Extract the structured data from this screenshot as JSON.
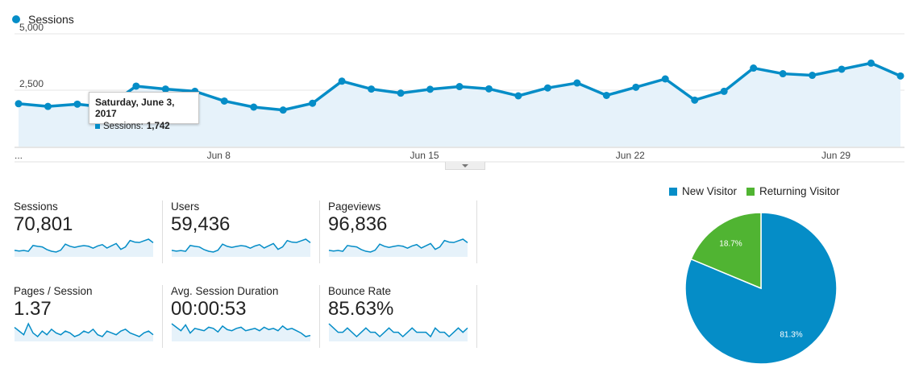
{
  "chart_data": [
    {
      "type": "line",
      "series": [
        {
          "name": "Sessions",
          "values": [
            1900,
            1780,
            1880,
            1742,
            2680,
            2550,
            2450,
            2020,
            1750,
            1620,
            1920,
            2900,
            2550,
            2370,
            2540,
            2660,
            2560,
            2250,
            2600,
            2820,
            2270,
            2630,
            3000,
            2060,
            2450,
            3480,
            3230,
            3160,
            3430,
            3700,
            3130
          ]
        }
      ],
      "x_tick_labels": [
        "...",
        "Jun 8",
        "Jun 15",
        "Jun 22",
        "Jun 29"
      ],
      "y_tick_labels": [
        "5,000",
        "2,500"
      ],
      "ylim": [
        0,
        5000
      ],
      "grid": true,
      "tooltip": {
        "title": "Saturday, June 3, 2017",
        "series_label": "Sessions:",
        "value_text": "1,742",
        "point_index": 3
      },
      "color": "#058dc7"
    },
    {
      "type": "pie",
      "slices": [
        {
          "name": "New Visitor",
          "value": 81.3,
          "label": "81.3%",
          "color": "#058dc7"
        },
        {
          "name": "Returning Visitor",
          "value": 18.7,
          "label": "18.7%",
          "color": "#50b432"
        }
      ],
      "legend_placement": "top"
    }
  ],
  "metrics": [
    {
      "label": "Sessions",
      "value": "70,801",
      "spark": [
        1900,
        1780,
        1880,
        1742,
        2680,
        2550,
        2450,
        2020,
        1750,
        1620,
        1920,
        2900,
        2550,
        2370,
        2540,
        2660,
        2560,
        2250,
        2600,
        2820,
        2270,
        2630,
        3000,
        2060,
        2450,
        3480,
        3230,
        3160,
        3430,
        3700,
        3130
      ]
    },
    {
      "label": "Users",
      "value": "59,436",
      "spark": [
        1600,
        1500,
        1580,
        1470,
        2260,
        2150,
        2060,
        1700,
        1480,
        1370,
        1620,
        2440,
        2150,
        2000,
        2140,
        2240,
        2160,
        1900,
        2190,
        2380,
        1920,
        2220,
        2530,
        1740,
        2070,
        2930,
        2720,
        2670,
        2890,
        3120,
        2640
      ]
    },
    {
      "label": "Pageviews",
      "value": "96,836",
      "spark": [
        2600,
        2440,
        2570,
        2380,
        3660,
        3490,
        3350,
        2760,
        2390,
        2220,
        2630,
        3970,
        3490,
        3240,
        3470,
        3640,
        3500,
        3080,
        3560,
        3860,
        3110,
        3600,
        4100,
        2820,
        3350,
        4760,
        4420,
        4320,
        4690,
        5060,
        4280
      ]
    },
    {
      "label": "Pages / Session",
      "value": "1.37",
      "spark": [
        1.4,
        1.38,
        1.36,
        1.42,
        1.37,
        1.35,
        1.38,
        1.36,
        1.39,
        1.37,
        1.36,
        1.38,
        1.37,
        1.35,
        1.36,
        1.38,
        1.37,
        1.39,
        1.36,
        1.35,
        1.38,
        1.37,
        1.36,
        1.38,
        1.39,
        1.37,
        1.36,
        1.35,
        1.37,
        1.38,
        1.36
      ]
    },
    {
      "label": "Avg. Session Duration",
      "value": "00:00:53",
      "spark": [
        58,
        55,
        52,
        57,
        50,
        54,
        53,
        52,
        55,
        54,
        51,
        56,
        53,
        52,
        54,
        55,
        52,
        53,
        54,
        52,
        55,
        53,
        54,
        52,
        56,
        53,
        54,
        52,
        50,
        47,
        48
      ]
    },
    {
      "label": "Bounce Rate",
      "value": "85.63%",
      "spark": [
        85.8,
        85.7,
        85.6,
        85.6,
        85.7,
        85.6,
        85.5,
        85.6,
        85.7,
        85.6,
        85.6,
        85.5,
        85.6,
        85.7,
        85.6,
        85.6,
        85.5,
        85.6,
        85.7,
        85.6,
        85.6,
        85.6,
        85.5,
        85.7,
        85.6,
        85.6,
        85.5,
        85.6,
        85.7,
        85.6,
        85.7
      ]
    }
  ]
}
